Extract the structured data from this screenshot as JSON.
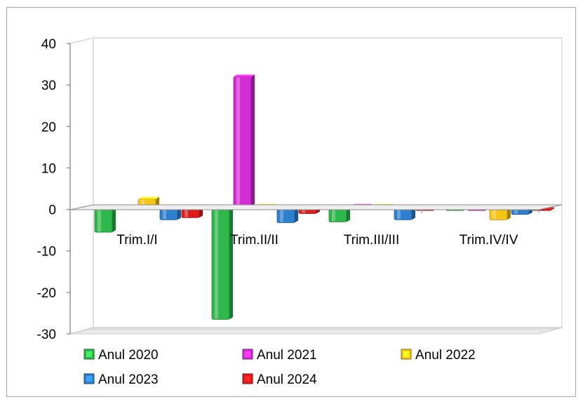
{
  "chart_data": {
    "type": "bar",
    "categories": [
      "Trim.I/I",
      "Trim.II/II",
      "Trim.III/III",
      "Trim.IV/IV"
    ],
    "series": [
      {
        "name": "Anul 2020",
        "values": [
          -5.5,
          -26.5,
          -3.0,
          -0.2
        ],
        "color": "#2eb84c"
      },
      {
        "name": "Anul 2021",
        "values": [
          0.5,
          32.0,
          0.8,
          -0.2
        ],
        "color": "#d22cd2"
      },
      {
        "name": "Anul 2022",
        "values": [
          2.5,
          0.8,
          0.8,
          -2.5
        ],
        "color": "#f5c518"
      },
      {
        "name": "Anul 2023",
        "values": [
          -2.5,
          -3.2,
          -2.5,
          -1.2
        ],
        "color": "#2f7fd0"
      },
      {
        "name": "Anul 2024",
        "values": [
          -2.0,
          -1.0,
          -0.2,
          0.0
        ],
        "color": "#e01b1b"
      }
    ],
    "yticks": [
      40,
      30,
      20,
      10,
      0,
      -10,
      -20,
      -30
    ],
    "ylim": [
      -30,
      40
    ],
    "grid": false,
    "legend_position": "bottom"
  }
}
